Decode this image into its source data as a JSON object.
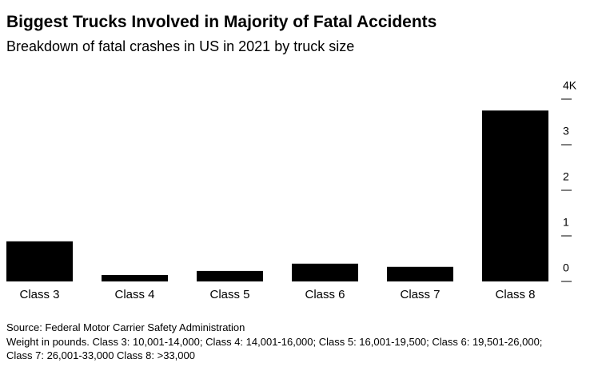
{
  "chart_data": {
    "type": "bar",
    "title": "Biggest Trucks Involved in Majority of Fatal Accidents",
    "subtitle": "Breakdown of fatal crashes in US in 2021 by truck size",
    "categories": [
      "Class 3",
      "Class 4",
      "Class 5",
      "Class 6",
      "Class 7",
      "Class 8"
    ],
    "values": [
      0.88,
      0.14,
      0.23,
      0.39,
      0.32,
      3.75
    ],
    "color": "#000000",
    "ylim": [
      0,
      4
    ],
    "yticks": [
      0,
      1,
      2,
      3,
      {
        "value": 4,
        "label": "4K"
      }
    ],
    "source": "Source: Federal Motor Carrier Safety Administration",
    "note": "Weight in pounds. Class 3: 10,001-14,000; Class 4: 14,001-16,000; Class 5: 16,001-19,500; Class 6: 19,501-26,000; Class 7: 26,001-33,000 Class 8: >33,000"
  }
}
